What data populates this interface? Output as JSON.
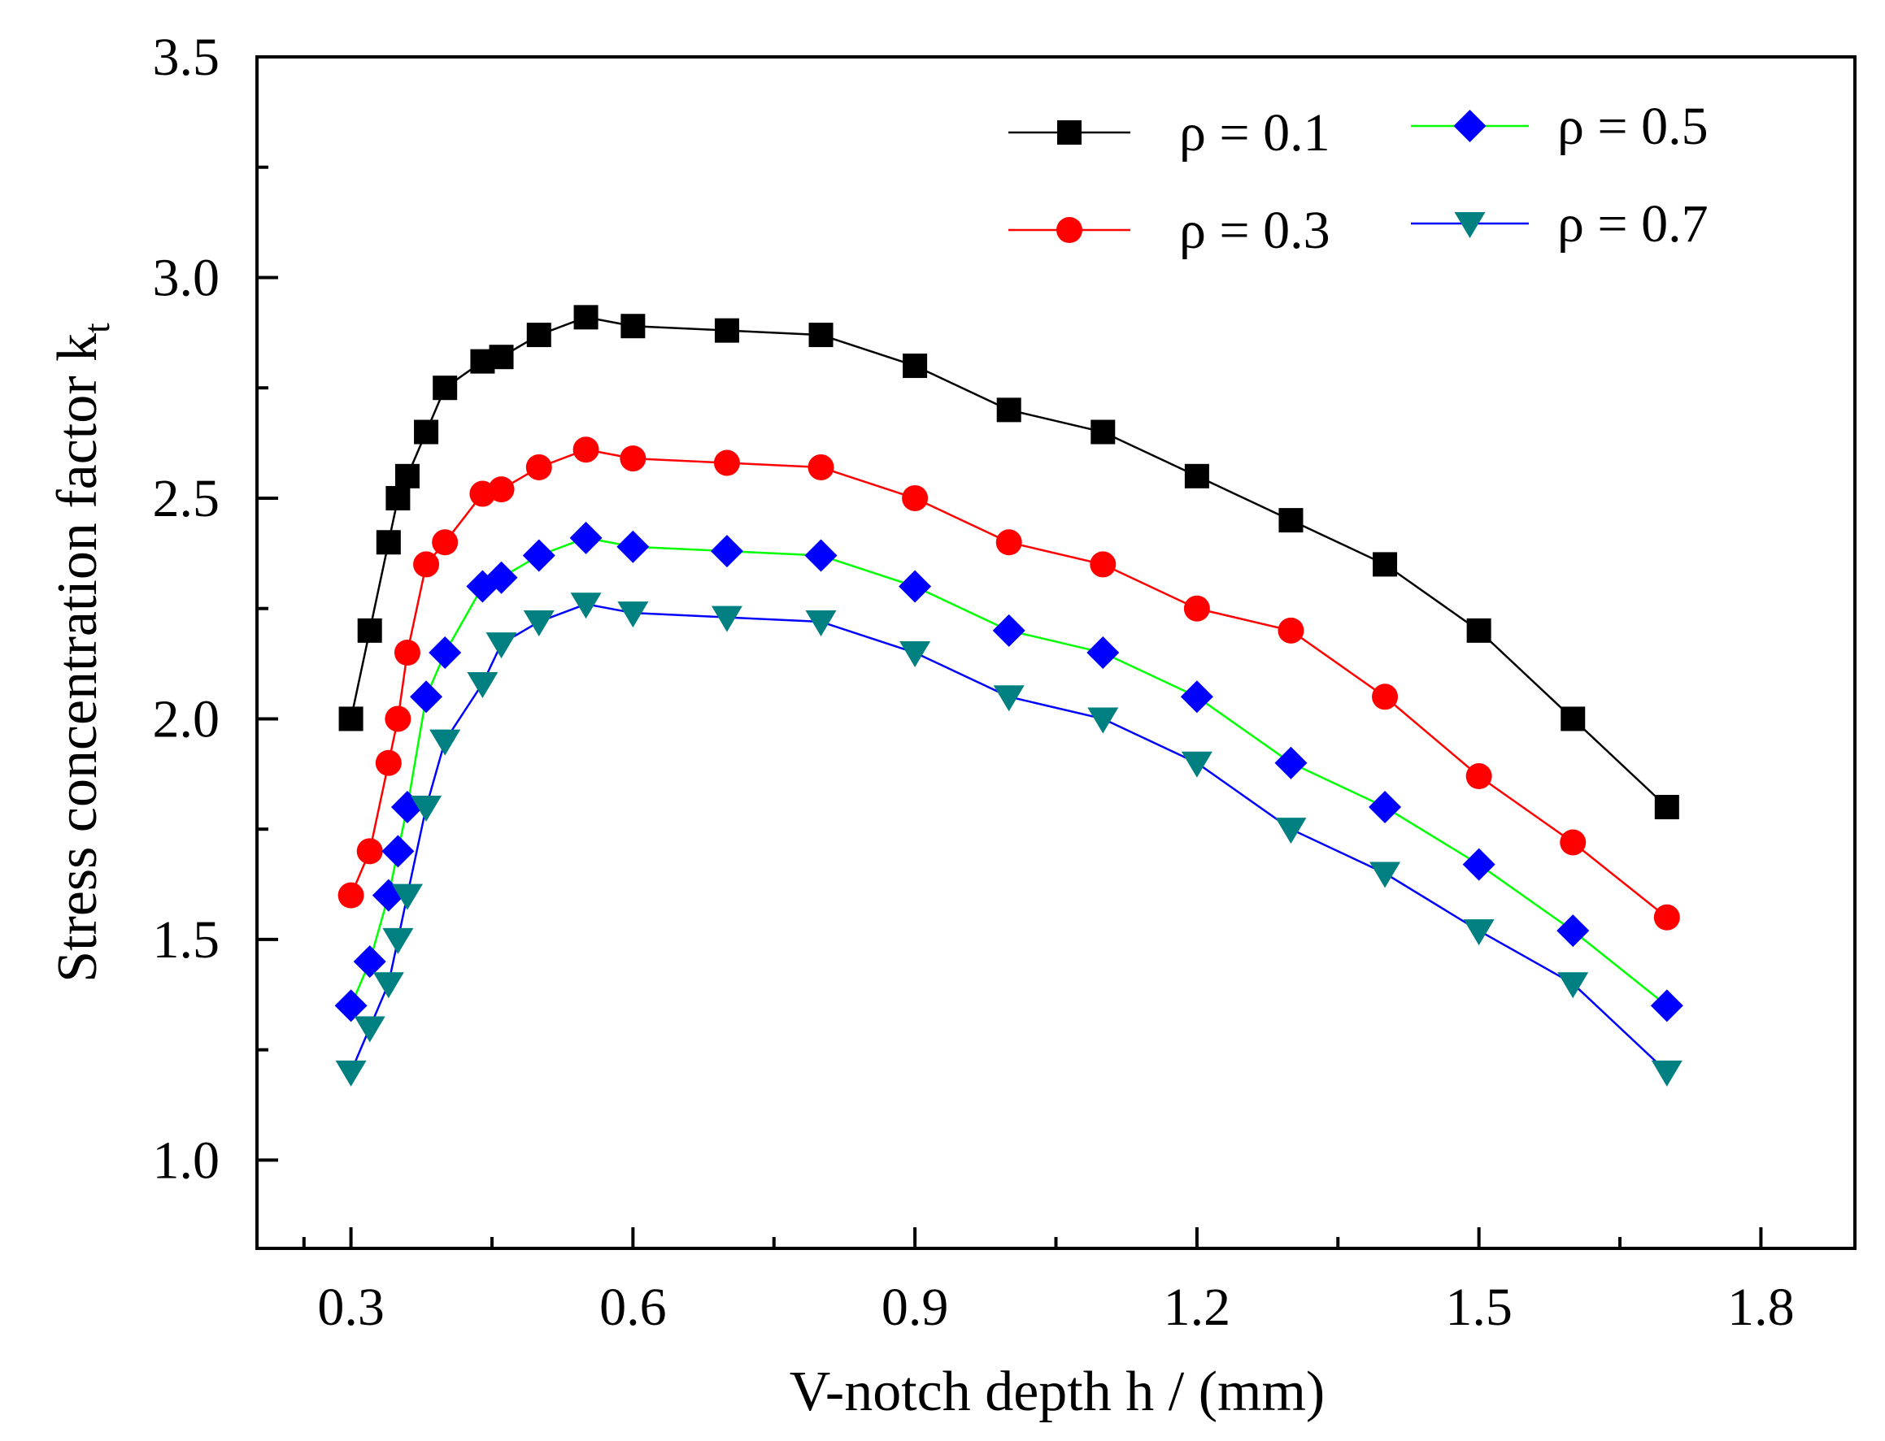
{
  "chart_data": {
    "type": "line",
    "xlabel": "V-notch depth h / (mm)",
    "ylabel": "Stress concentration factor k",
    "ylabel_subscript": "t",
    "xlim": [
      0.2,
      1.9
    ],
    "ylim": [
      0.8,
      3.5
    ],
    "xticks": [
      "0.3",
      "0.6",
      "0.9",
      "1.2",
      "1.5",
      "1.8"
    ],
    "yticks": [
      "1.0",
      "1.5",
      "2.0",
      "2.5",
      "3.0",
      "3.5"
    ],
    "grid": false,
    "legend_position": "top-right",
    "series": [
      {
        "name": "ρ = 0.1",
        "color": "#000000",
        "marker": "square",
        "x": [
          0.3,
          0.32,
          0.34,
          0.35,
          0.36,
          0.38,
          0.4,
          0.44,
          0.46,
          0.5,
          0.55,
          0.6,
          0.7,
          0.8,
          0.9,
          1.0,
          1.1,
          1.2,
          1.3,
          1.4,
          1.5,
          1.6,
          1.7
        ],
        "y": [
          2.0,
          2.2,
          2.4,
          2.5,
          2.55,
          2.65,
          2.75,
          2.81,
          2.82,
          2.87,
          2.91,
          2.89,
          2.88,
          2.87,
          2.8,
          2.7,
          2.65,
          2.55,
          2.45,
          2.35,
          2.2,
          2.0,
          1.8
        ]
      },
      {
        "name": "ρ = 0.3",
        "color": "#ff0000",
        "marker": "circle",
        "x": [
          0.3,
          0.32,
          0.34,
          0.35,
          0.36,
          0.38,
          0.4,
          0.44,
          0.46,
          0.5,
          0.55,
          0.6,
          0.7,
          0.8,
          0.9,
          1.0,
          1.1,
          1.2,
          1.3,
          1.4,
          1.5,
          1.6,
          1.7
        ],
        "y": [
          1.6,
          1.7,
          1.9,
          2.0,
          2.15,
          2.35,
          2.4,
          2.51,
          2.52,
          2.57,
          2.61,
          2.59,
          2.58,
          2.57,
          2.5,
          2.4,
          2.35,
          2.25,
          2.2,
          2.05,
          1.87,
          1.72,
          1.55
        ]
      },
      {
        "name": "ρ = 0.5",
        "color": "#0000ff",
        "line_color": "#00ff00",
        "marker": "diamond",
        "x": [
          0.3,
          0.32,
          0.34,
          0.35,
          0.36,
          0.38,
          0.4,
          0.44,
          0.46,
          0.5,
          0.55,
          0.6,
          0.7,
          0.8,
          0.9,
          1.0,
          1.1,
          1.2,
          1.3,
          1.4,
          1.5,
          1.6,
          1.7
        ],
        "y": [
          1.35,
          1.45,
          1.6,
          1.7,
          1.8,
          2.05,
          2.15,
          2.3,
          2.32,
          2.37,
          2.41,
          2.39,
          2.38,
          2.37,
          2.3,
          2.2,
          2.15,
          2.05,
          1.9,
          1.8,
          1.67,
          1.52,
          1.35
        ]
      },
      {
        "name": "ρ = 0.7",
        "color": "#008080",
        "line_color": "#0000ff",
        "marker": "triangle-down",
        "x": [
          0.3,
          0.32,
          0.34,
          0.35,
          0.36,
          0.38,
          0.4,
          0.44,
          0.46,
          0.5,
          0.55,
          0.6,
          0.7,
          0.8,
          0.9,
          1.0,
          1.1,
          1.2,
          1.3,
          1.4,
          1.5,
          1.6,
          1.7
        ],
        "y": [
          1.2,
          1.3,
          1.4,
          1.5,
          1.6,
          1.8,
          1.95,
          2.08,
          2.17,
          2.22,
          2.26,
          2.24,
          2.23,
          2.22,
          2.15,
          2.05,
          2.0,
          1.9,
          1.75,
          1.65,
          1.52,
          1.4,
          1.2
        ]
      }
    ]
  }
}
